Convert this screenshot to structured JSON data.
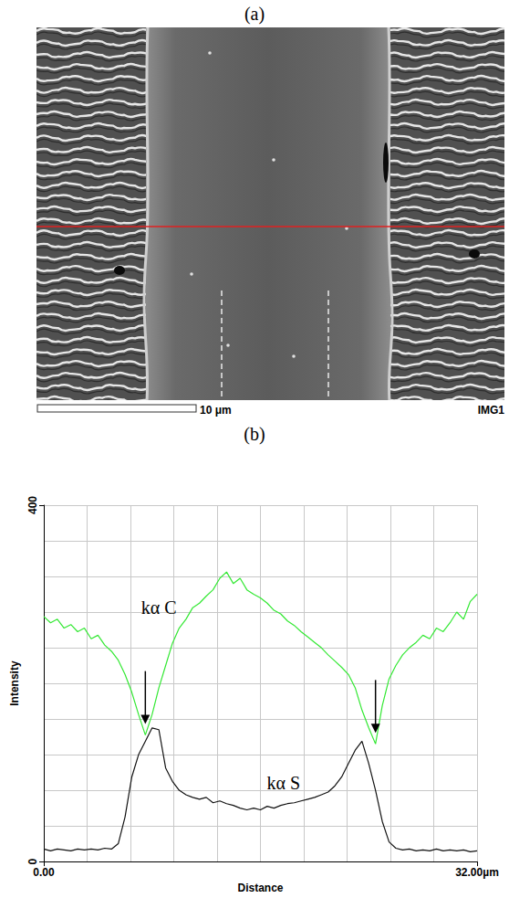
{
  "panel_labels": [
    "(a)",
    "(b)"
  ],
  "image": {
    "scale_bar": "10 μm",
    "label": "IMG1"
  },
  "chart_data": {
    "type": "line",
    "x_label": "Distance",
    "y_label": "Intensity",
    "x": [
      0,
      0.5,
      1,
      1.5,
      2,
      2.5,
      3,
      3.5,
      4,
      4.5,
      5,
      5.5,
      6,
      6.5,
      7,
      7.5,
      8,
      8.5,
      9,
      9.5,
      10,
      10.5,
      11,
      11.5,
      12,
      12.5,
      13,
      13.5,
      14,
      14.5,
      15,
      15.5,
      16,
      16.5,
      17,
      17.5,
      18,
      18.5,
      19,
      19.5,
      20,
      20.5,
      21,
      21.5,
      22,
      22.5,
      23,
      23.5,
      24,
      24.5,
      25,
      25.5,
      26,
      26.5,
      27,
      27.5,
      28,
      28.5,
      29,
      29.5,
      30,
      30.5,
      31,
      31.5,
      32
    ],
    "xlim": [
      0,
      32
    ],
    "xticks": [
      {
        "value": 0,
        "label": "0.00"
      },
      {
        "value": 32,
        "label": "32.00µm"
      }
    ],
    "ylim": [
      0,
      400
    ],
    "yticks": [
      0,
      400
    ],
    "grid": true,
    "series": [
      {
        "name": "kα C",
        "color": "#33e833",
        "values": [
          275,
          268,
          272,
          262,
          266,
          258,
          262,
          250,
          254,
          243,
          236,
          226,
          210,
          190,
          165,
          142,
          165,
          195,
          220,
          245,
          262,
          272,
          285,
          290,
          298,
          305,
          318,
          325,
          312,
          318,
          305,
          300,
          296,
          290,
          282,
          278,
          270,
          265,
          258,
          252,
          246,
          240,
          232,
          225,
          218,
          210,
          195,
          170,
          150,
          132,
          175,
          205,
          220,
          232,
          240,
          246,
          254,
          250,
          262,
          258,
          268,
          280,
          272,
          292,
          300
        ]
      },
      {
        "name": "kα S",
        "color": "#111111",
        "values": [
          14,
          12,
          14,
          13,
          12,
          14,
          13,
          14,
          13,
          15,
          14,
          20,
          50,
          95,
          120,
          135,
          150,
          148,
          105,
          90,
          80,
          75,
          72,
          70,
          72,
          66,
          68,
          65,
          63,
          60,
          58,
          60,
          58,
          62,
          60,
          63,
          65,
          66,
          68,
          70,
          72,
          75,
          78,
          85,
          95,
          110,
          125,
          135,
          110,
          80,
          45,
          22,
          15,
          13,
          14,
          12,
          13,
          12,
          14,
          12,
          13,
          12,
          13,
          11,
          12
        ]
      }
    ]
  }
}
